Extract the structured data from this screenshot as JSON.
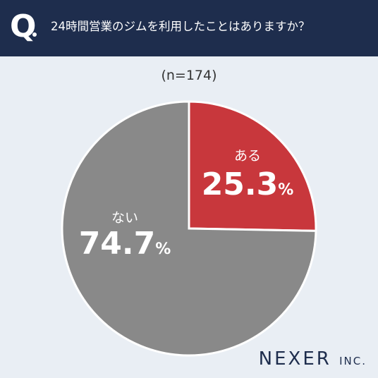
{
  "header": {
    "q_letter": "Q",
    "question": "24時間営業のジムを利用したことはありますか？"
  },
  "sample_label": "(n=174)",
  "chart_data": {
    "type": "pie",
    "slices": [
      {
        "label": "ある",
        "value": 25.3,
        "display": "25.3",
        "unit": "%",
        "color": "#c8373c"
      },
      {
        "label": "ない",
        "value": 74.7,
        "display": "74.7",
        "unit": "%",
        "color": "#898989"
      }
    ]
  },
  "logo": {
    "main": "NEXER",
    "suffix": "INC."
  }
}
